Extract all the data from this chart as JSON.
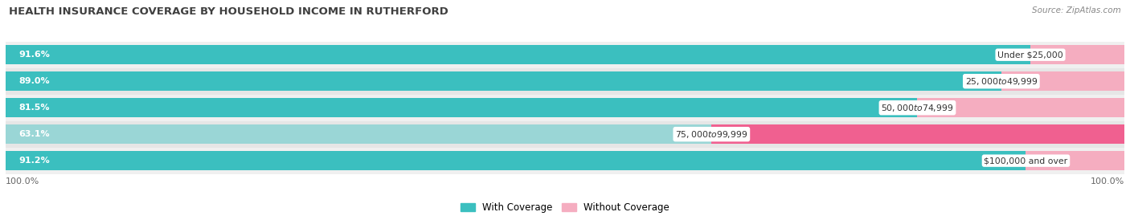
{
  "title": "HEALTH INSURANCE COVERAGE BY HOUSEHOLD INCOME IN RUTHERFORD",
  "source": "Source: ZipAtlas.com",
  "categories": [
    "Under $25,000",
    "$25,000 to $49,999",
    "$50,000 to $74,999",
    "$75,000 to $99,999",
    "$100,000 and over"
  ],
  "with_coverage": [
    91.6,
    89.0,
    81.5,
    63.1,
    91.2
  ],
  "without_coverage": [
    8.4,
    11.1,
    18.5,
    36.9,
    8.8
  ],
  "with_coverage_color": "#3bbfbf",
  "with_coverage_light": "#9ad6d6",
  "without_coverage_color_light": "#f5adc0",
  "without_coverage_color_dark": "#f06090",
  "row_bg_even": "#f0f0f0",
  "row_bg_odd": "#e6e6e6",
  "figsize": [
    14.06,
    2.69
  ],
  "dpi": 100
}
